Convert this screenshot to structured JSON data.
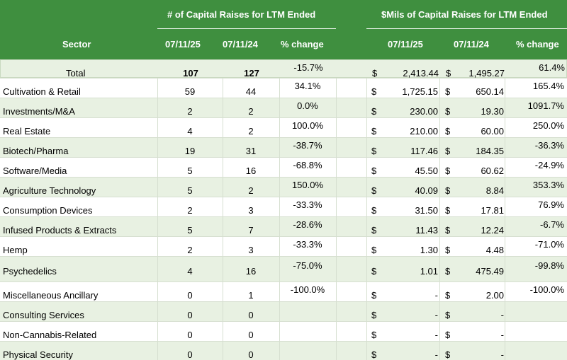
{
  "header": {
    "group_count": "# of Capital Raises for LTM  Ended",
    "group_amount": "$Mils of Capital Raises for LTM Ended",
    "sector": "Sector",
    "date1": "07/11/25",
    "date2": "07/11/24",
    "pct": "% change",
    "date3": "07/11/25",
    "date4": "07/11/24",
    "pct2": "% change"
  },
  "dollar_sign": "$",
  "rows": [
    {
      "sector": "Total",
      "c1": "107",
      "c2": "127",
      "cp": "-15.7%",
      "a1": "2,413.44",
      "a2": "1,495.27",
      "ap": "61.4%"
    },
    {
      "sector": "Cultivation & Retail",
      "c1": "59",
      "c2": "44",
      "cp": "34.1%",
      "a1": "1,725.15",
      "a2": "650.14",
      "ap": "165.4%"
    },
    {
      "sector": "Investments/M&A",
      "c1": "2",
      "c2": "2",
      "cp": "0.0%",
      "a1": "230.00",
      "a2": "19.30",
      "ap": "1091.7%"
    },
    {
      "sector": "Real Estate",
      "c1": "4",
      "c2": "2",
      "cp": "100.0%",
      "a1": "210.00",
      "a2": "60.00",
      "ap": "250.0%"
    },
    {
      "sector": "Biotech/Pharma",
      "c1": "19",
      "c2": "31",
      "cp": "-38.7%",
      "a1": "117.46",
      "a2": "184.35",
      "ap": "-36.3%"
    },
    {
      "sector": "Software/Media",
      "c1": "5",
      "c2": "16",
      "cp": "-68.8%",
      "a1": "45.50",
      "a2": "60.62",
      "ap": "-24.9%"
    },
    {
      "sector": "Agriculture Technology",
      "c1": "5",
      "c2": "2",
      "cp": "150.0%",
      "a1": "40.09",
      "a2": "8.84",
      "ap": "353.3%"
    },
    {
      "sector": "Consumption Devices",
      "c1": "2",
      "c2": "3",
      "cp": "-33.3%",
      "a1": "31.50",
      "a2": "17.81",
      "ap": "76.9%"
    },
    {
      "sector": "Infused Products & Extracts",
      "c1": "5",
      "c2": "7",
      "cp": "-28.6%",
      "a1": "11.43",
      "a2": "12.24",
      "ap": "-6.7%"
    },
    {
      "sector": "Hemp",
      "c1": "2",
      "c2": "3",
      "cp": "-33.3%",
      "a1": "1.30",
      "a2": "4.48",
      "ap": "-71.0%"
    },
    {
      "sector": "Psychedelics",
      "c1": "4",
      "c2": "16",
      "cp": "-75.0%",
      "a1": "1.01",
      "a2": "475.49",
      "ap": "-99.8%"
    },
    {
      "sector": "Miscellaneous Ancillary",
      "c1": "0",
      "c2": "1",
      "cp": "-100.0%",
      "a1": "-",
      "a2": "2.00",
      "ap": "-100.0%"
    },
    {
      "sector": "Consulting Services",
      "c1": "0",
      "c2": "0",
      "cp": "",
      "a1": "-",
      "a2": "-",
      "ap": ""
    },
    {
      "sector": "Non-Cannabis-Related",
      "c1": "0",
      "c2": "0",
      "cp": "",
      "a1": "-",
      "a2": "-",
      "ap": ""
    },
    {
      "sector": "Physical Security",
      "c1": "0",
      "c2": "0",
      "cp": "",
      "a1": "-",
      "a2": "-",
      "ap": ""
    }
  ]
}
